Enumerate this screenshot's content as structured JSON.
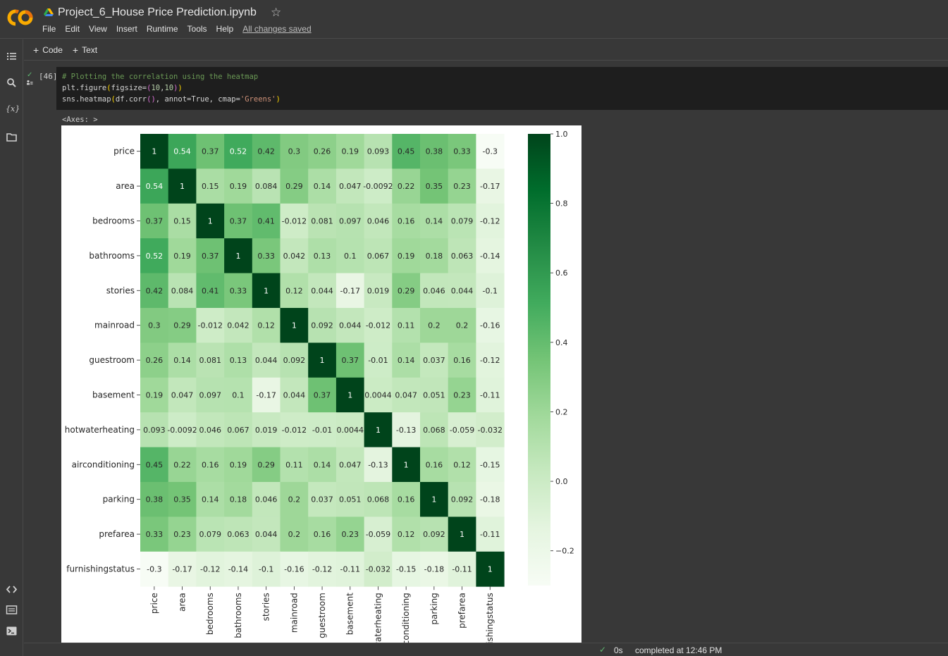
{
  "app": {
    "notebook_title": "Project_6_House Price Prediction.ipynb",
    "star_icon": "star-icon",
    "logo_icon": "colab-logo",
    "drive_icon": "google-drive-icon"
  },
  "menu": [
    "File",
    "Edit",
    "View",
    "Insert",
    "Runtime",
    "Tools",
    "Help"
  ],
  "menu_status": "All changes saved",
  "toolbar": {
    "code_label": "Code",
    "text_label": "Text"
  },
  "rail_icons": [
    "table-of-contents-icon",
    "search-icon",
    "variables-icon",
    "files-icon",
    "code-snippets-icon",
    "command-palette-icon",
    "terminal-icon"
  ],
  "cell": {
    "exec_count": "[46]",
    "code_lines": [
      "# Plotting the correlation using the heatmap",
      "plt.figure(figsize=(10,10))",
      "sns.heatmap(df.corr(), annot=True, cmap='Greens')"
    ],
    "output_text": "<Axes: >"
  },
  "chart_data": {
    "type": "heatmap",
    "colormap": "Greens",
    "labels": [
      "price",
      "area",
      "bedrooms",
      "bathrooms",
      "stories",
      "mainroad",
      "guestroom",
      "basement",
      "hotwaterheating",
      "airconditioning",
      "parking",
      "prefarea",
      "furnishingstatus"
    ],
    "values": [
      [
        1,
        0.54,
        0.37,
        0.52,
        0.42,
        0.3,
        0.26,
        0.19,
        0.093,
        0.45,
        0.38,
        0.33,
        -0.3
      ],
      [
        0.54,
        1,
        0.15,
        0.19,
        0.084,
        0.29,
        0.14,
        0.047,
        -0.0092,
        0.22,
        0.35,
        0.23,
        -0.17
      ],
      [
        0.37,
        0.15,
        1,
        0.37,
        0.41,
        -0.012,
        0.081,
        0.097,
        0.046,
        0.16,
        0.14,
        0.079,
        -0.12
      ],
      [
        0.52,
        0.19,
        0.37,
        1,
        0.33,
        0.042,
        0.13,
        0.1,
        0.067,
        0.19,
        0.18,
        0.063,
        -0.14
      ],
      [
        0.42,
        0.084,
        0.41,
        0.33,
        1,
        0.12,
        0.044,
        -0.17,
        0.019,
        0.29,
        0.046,
        0.044,
        -0.1
      ],
      [
        0.3,
        0.29,
        -0.012,
        0.042,
        0.12,
        1,
        0.092,
        0.044,
        -0.012,
        0.11,
        0.2,
        0.2,
        -0.16
      ],
      [
        0.26,
        0.14,
        0.081,
        0.13,
        0.044,
        0.092,
        1,
        0.37,
        -0.01,
        0.14,
        0.037,
        0.16,
        -0.12
      ],
      [
        0.19,
        0.047,
        0.097,
        0.1,
        -0.17,
        0.044,
        0.37,
        1,
        0.0044,
        0.047,
        0.051,
        0.23,
        -0.11
      ],
      [
        0.093,
        -0.0092,
        0.046,
        0.067,
        0.019,
        -0.012,
        -0.01,
        0.0044,
        1,
        -0.13,
        0.068,
        -0.059,
        -0.032
      ],
      [
        0.45,
        0.22,
        0.16,
        0.19,
        0.29,
        0.11,
        0.14,
        0.047,
        -0.13,
        1,
        0.16,
        0.12,
        -0.15
      ],
      [
        0.38,
        0.35,
        0.14,
        0.18,
        0.046,
        0.2,
        0.037,
        0.051,
        0.068,
        0.16,
        1,
        0.092,
        -0.18
      ],
      [
        0.33,
        0.23,
        0.079,
        0.063,
        0.044,
        0.2,
        0.16,
        0.23,
        -0.059,
        0.12,
        0.092,
        1,
        -0.11
      ],
      [
        -0.3,
        -0.17,
        -0.12,
        -0.14,
        -0.1,
        -0.16,
        -0.12,
        -0.11,
        -0.032,
        -0.15,
        -0.18,
        -0.11,
        1
      ]
    ],
    "annotations": [
      [
        "1",
        "0.54",
        "0.37",
        "0.52",
        "0.42",
        "0.3",
        "0.26",
        "0.19",
        "0.093",
        "0.45",
        "0.38",
        "0.33",
        "-0.3"
      ],
      [
        "0.54",
        "1",
        "0.15",
        "0.19",
        "0.084",
        "0.29",
        "0.14",
        "0.047",
        "-0.0092",
        "0.22",
        "0.35",
        "0.23",
        "-0.17"
      ],
      [
        "0.37",
        "0.15",
        "1",
        "0.37",
        "0.41",
        "-0.012",
        "0.081",
        "0.097",
        "0.046",
        "0.16",
        "0.14",
        "0.079",
        "-0.12"
      ],
      [
        "0.52",
        "0.19",
        "0.37",
        "1",
        "0.33",
        "0.042",
        "0.13",
        "0.1",
        "0.067",
        "0.19",
        "0.18",
        "0.063",
        "-0.14"
      ],
      [
        "0.42",
        "0.084",
        "0.41",
        "0.33",
        "1",
        "0.12",
        "0.044",
        "-0.17",
        "0.019",
        "0.29",
        "0.046",
        "0.044",
        "-0.1"
      ],
      [
        "0.3",
        "0.29",
        "-0.012",
        "0.042",
        "0.12",
        "1",
        "0.092",
        "0.044",
        "-0.012",
        "0.11",
        "0.2",
        "0.2",
        "-0.16"
      ],
      [
        "0.26",
        "0.14",
        "0.081",
        "0.13",
        "0.044",
        "0.092",
        "1",
        "0.37",
        "-0.01",
        "0.14",
        "0.037",
        "0.16",
        "-0.12"
      ],
      [
        "0.19",
        "0.047",
        "0.097",
        "0.1",
        "-0.17",
        "0.044",
        "0.37",
        "1",
        "0.0044",
        "0.047",
        "0.051",
        "0.23",
        "-0.11"
      ],
      [
        "0.093",
        "-0.0092",
        "0.046",
        "0.067",
        "0.019",
        "-0.012",
        "-0.01",
        "0.0044",
        "1",
        "-0.13",
        "0.068",
        "-0.059",
        "-0.032"
      ],
      [
        "0.45",
        "0.22",
        "0.16",
        "0.19",
        "0.29",
        "0.11",
        "0.14",
        "0.047",
        "-0.13",
        "1",
        "0.16",
        "0.12",
        "-0.15"
      ],
      [
        "0.38",
        "0.35",
        "0.14",
        "0.18",
        "0.046",
        "0.2",
        "0.037",
        "0.051",
        "0.068",
        "0.16",
        "1",
        "0.092",
        "-0.18"
      ],
      [
        "0.33",
        "0.23",
        "0.079",
        "0.063",
        "0.044",
        "0.2",
        "0.16",
        "0.23",
        "-0.059",
        "0.12",
        "0.092",
        "1",
        "-0.11"
      ],
      [
        "-0.3",
        "-0.17",
        "-0.12",
        "-0.14",
        "-0.1",
        "-0.16",
        "-0.12",
        "-0.11",
        "-0.032",
        "-0.15",
        "-0.18",
        "-0.11",
        "1"
      ]
    ],
    "colorbar": {
      "range": [
        -0.3,
        1.0
      ],
      "ticks": [
        1.0,
        0.8,
        0.6,
        0.4,
        0.2,
        0.0,
        -0.2
      ],
      "tick_labels": [
        "1.0",
        "0.8",
        "0.6",
        "0.4",
        "0.2",
        "0.0",
        "−0.2"
      ]
    }
  },
  "status": {
    "check_icon": "check-icon",
    "duration": "0s",
    "message": "completed at 12:46 PM"
  }
}
